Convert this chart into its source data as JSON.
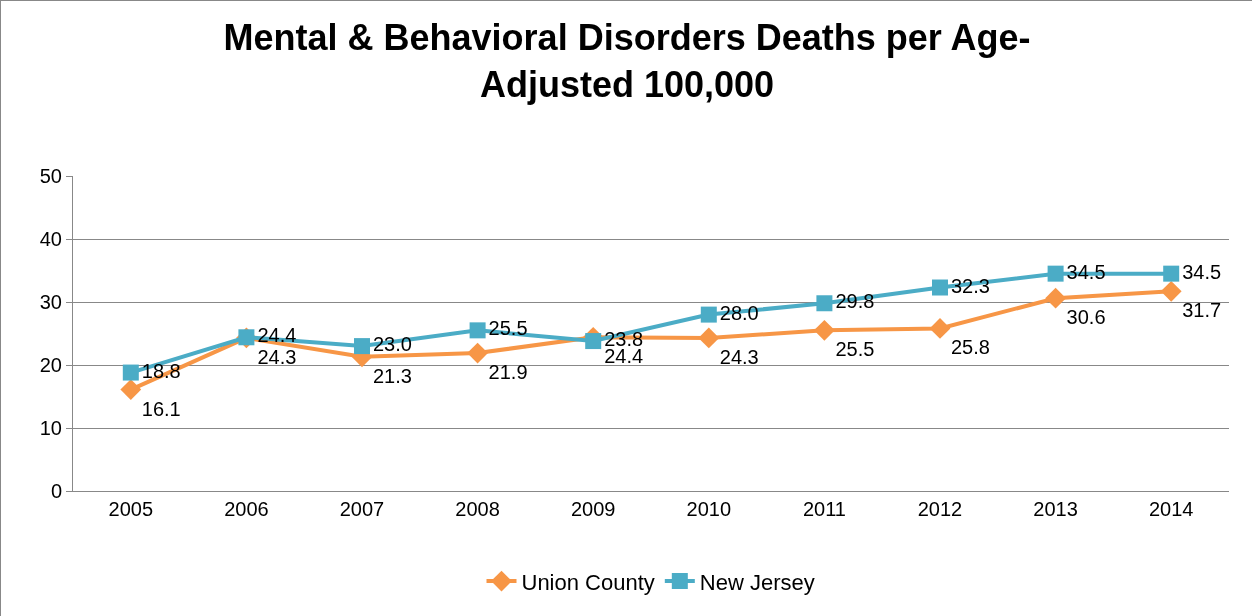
{
  "chart_data": {
    "type": "line",
    "title": "Mental & Behavioral Disorders Deaths per Age-Adjusted 100,000",
    "categories": [
      "2005",
      "2006",
      "2007",
      "2008",
      "2009",
      "2010",
      "2011",
      "2012",
      "2013",
      "2014"
    ],
    "series": [
      {
        "name": "Union County",
        "color": "#f79646",
        "marker": "diamond",
        "values": [
          16.1,
          24.3,
          21.3,
          21.9,
          24.4,
          24.3,
          25.5,
          25.8,
          30.6,
          31.7
        ],
        "value_labels": [
          "16.1",
          "24.3",
          "21.3",
          "21.9",
          "24.4",
          "24.3",
          "25.5",
          "25.8",
          "30.6",
          "31.7"
        ]
      },
      {
        "name": "New Jersey",
        "color": "#4bacc6",
        "marker": "square",
        "values": [
          18.8,
          24.4,
          23.0,
          25.5,
          23.8,
          28.0,
          29.8,
          32.3,
          34.5,
          34.5
        ],
        "value_labels": [
          "18.8",
          "24.4",
          "23.0",
          "25.5",
          "23.8",
          "28.0",
          "29.8",
          "32.3",
          "34.5",
          "34.5"
        ]
      }
    ],
    "ylim": [
      0,
      50
    ],
    "yticks": [
      0,
      10,
      20,
      30,
      40,
      50
    ],
    "grid": "y",
    "legend": "bottom",
    "line_style": "solid"
  }
}
